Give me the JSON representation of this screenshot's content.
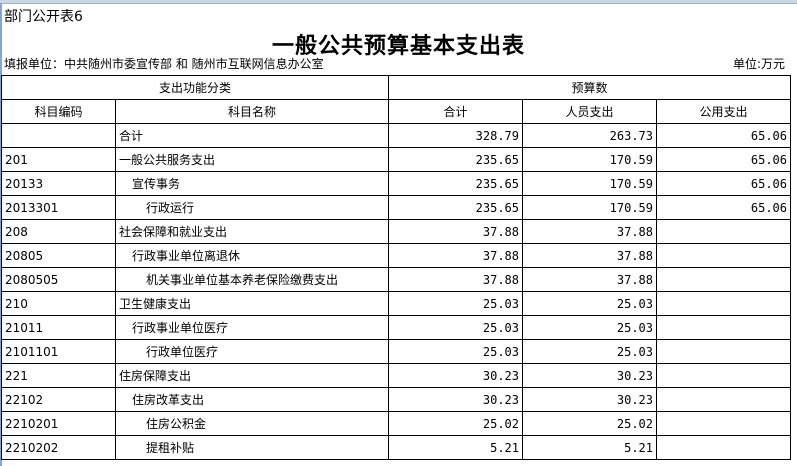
{
  "sheet_label": "部门公开表6",
  "title": "一般公共预算基本支出表",
  "filing_unit": "填报单位：中共随州市委宣传部 和 随州市互联网信息办公室",
  "unit": "单位:万元",
  "headers": {
    "group1": "支出功能分类",
    "group2": "预算数",
    "code": "科目编码",
    "name": "科目名称",
    "total": "合计",
    "personnel": "人员支出",
    "public": "公用支出"
  },
  "rows": [
    {
      "code": "",
      "name": "合计",
      "level": 0,
      "total": "328.79",
      "personnel": "263.73",
      "public": "65.06"
    },
    {
      "code": "201",
      "name": "一般公共服务支出",
      "level": 0,
      "total": "235.65",
      "personnel": "170.59",
      "public": "65.06"
    },
    {
      "code": "20133",
      "name": "宣传事务",
      "level": 1,
      "total": "235.65",
      "personnel": "170.59",
      "public": "65.06"
    },
    {
      "code": "2013301",
      "name": "行政运行",
      "level": 2,
      "total": "235.65",
      "personnel": "170.59",
      "public": "65.06"
    },
    {
      "code": "208",
      "name": "社会保障和就业支出",
      "level": 0,
      "total": "37.88",
      "personnel": "37.88",
      "public": ""
    },
    {
      "code": "20805",
      "name": "行政事业单位离退休",
      "level": 1,
      "total": "37.88",
      "personnel": "37.88",
      "public": ""
    },
    {
      "code": "2080505",
      "name": "机关事业单位基本养老保险缴费支出",
      "level": 2,
      "total": "37.88",
      "personnel": "37.88",
      "public": ""
    },
    {
      "code": "210",
      "name": "卫生健康支出",
      "level": 0,
      "total": "25.03",
      "personnel": "25.03",
      "public": ""
    },
    {
      "code": "21011",
      "name": "行政事业单位医疗",
      "level": 1,
      "total": "25.03",
      "personnel": "25.03",
      "public": ""
    },
    {
      "code": "2101101",
      "name": "行政单位医疗",
      "level": 2,
      "total": "25.03",
      "personnel": "25.03",
      "public": ""
    },
    {
      "code": "221",
      "name": "住房保障支出",
      "level": 0,
      "total": "30.23",
      "personnel": "30.23",
      "public": ""
    },
    {
      "code": "22102",
      "name": "住房改革支出",
      "level": 1,
      "total": "30.23",
      "personnel": "30.23",
      "public": ""
    },
    {
      "code": "2210201",
      "name": "住房公积金",
      "level": 2,
      "total": "25.02",
      "personnel": "25.02",
      "public": ""
    },
    {
      "code": "2210202",
      "name": "提租补贴",
      "level": 2,
      "total": "5.21",
      "personnel": "5.21",
      "public": ""
    }
  ]
}
